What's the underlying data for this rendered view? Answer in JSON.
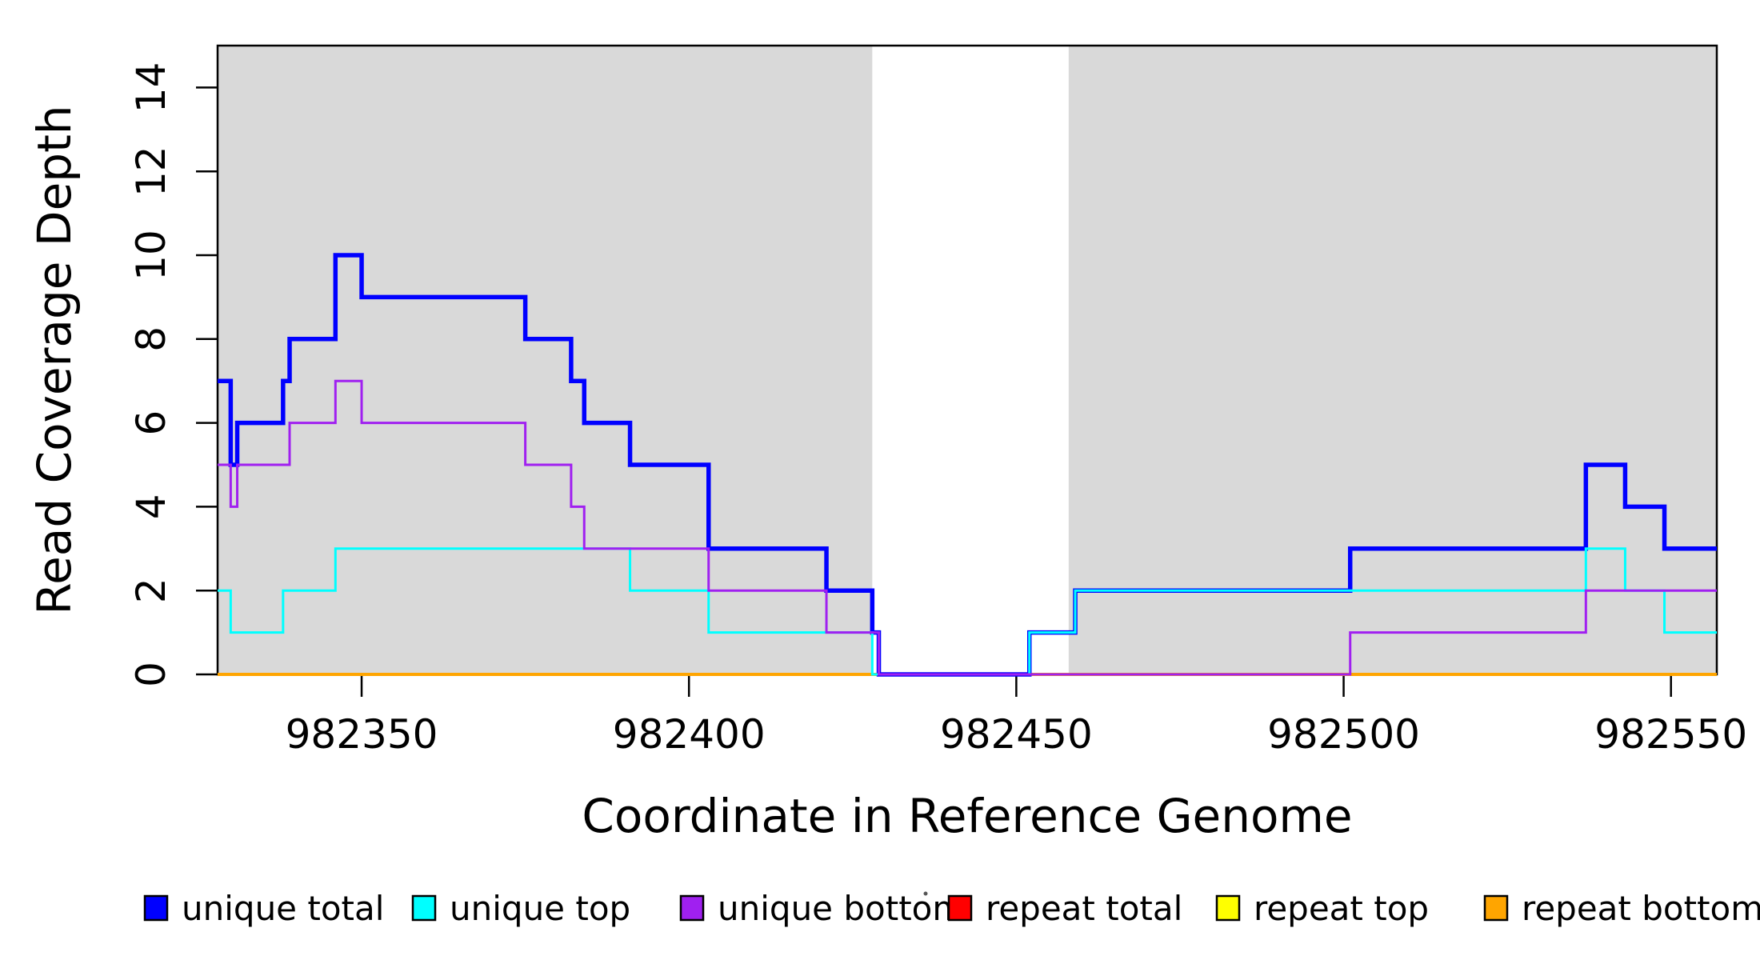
{
  "chart_data": {
    "type": "line",
    "step": true,
    "title": "",
    "xlabel": "Coordinate in Reference Genome",
    "ylabel": "Read Coverage Depth",
    "xlim": [
      982328,
      982557
    ],
    "ylim": [
      0,
      15
    ],
    "x_ticks": [
      "982350",
      "982400",
      "982450",
      "982500",
      "982550"
    ],
    "x_tick_values": [
      982350,
      982400,
      982450,
      982500,
      982550
    ],
    "y_ticks": [
      "0",
      "2",
      "4",
      "6",
      "8",
      "10",
      "12",
      "14"
    ],
    "y_tick_values": [
      0,
      2,
      4,
      6,
      8,
      10,
      12,
      14
    ],
    "grid": "off",
    "plot_background": "#ffffff",
    "shaded_color": "#d9d9d9",
    "shaded_regions": [
      {
        "x0": 982328,
        "x1": 982428
      },
      {
        "x0": 982458,
        "x1": 982557
      }
    ],
    "x_end": 982557,
    "series": [
      {
        "name": "repeat total",
        "color": "#ff0000",
        "line_width": 3,
        "points": [
          [
            982328,
            0
          ]
        ]
      },
      {
        "name": "repeat top",
        "color": "#ffff00",
        "line_width": 3,
        "points": [
          [
            982328,
            0
          ]
        ]
      },
      {
        "name": "repeat bottom",
        "color": "#ffa500",
        "line_width": 4,
        "points": [
          [
            982328,
            0
          ]
        ]
      },
      {
        "name": "unique total",
        "color": "#0000ff",
        "line_width": 5.5,
        "points": [
          [
            982328,
            7
          ],
          [
            982330,
            5
          ],
          [
            982331,
            6
          ],
          [
            982338,
            7
          ],
          [
            982339,
            8
          ],
          [
            982346,
            10
          ],
          [
            982350,
            9
          ],
          [
            982375,
            8
          ],
          [
            982382,
            7
          ],
          [
            982384,
            6
          ],
          [
            982391,
            5
          ],
          [
            982403,
            3
          ],
          [
            982421,
            2
          ],
          [
            982428,
            1
          ],
          [
            982429,
            0
          ],
          [
            982452,
            1
          ],
          [
            982459,
            2
          ],
          [
            982501,
            3
          ],
          [
            982537,
            5
          ],
          [
            982543,
            4
          ],
          [
            982549,
            3
          ]
        ]
      },
      {
        "name": "unique top",
        "color": "#00ffff",
        "line_width": 3,
        "points": [
          [
            982328,
            2
          ],
          [
            982330,
            1
          ],
          [
            982338,
            2
          ],
          [
            982346,
            3
          ],
          [
            982391,
            2
          ],
          [
            982403,
            1
          ],
          [
            982428,
            0
          ],
          [
            982452,
            1
          ],
          [
            982459,
            2
          ],
          [
            982537,
            3
          ],
          [
            982543,
            2
          ],
          [
            982549,
            1
          ]
        ]
      },
      {
        "name": "unique bottom",
        "color": "#a020f0",
        "line_width": 3,
        "points": [
          [
            982328,
            5
          ],
          [
            982330,
            4
          ],
          [
            982331,
            5
          ],
          [
            982339,
            6
          ],
          [
            982346,
            7
          ],
          [
            982350,
            6
          ],
          [
            982375,
            5
          ],
          [
            982382,
            4
          ],
          [
            982384,
            3
          ],
          [
            982403,
            2
          ],
          [
            982421,
            1
          ],
          [
            982429,
            0
          ],
          [
            982501,
            1
          ],
          [
            982537,
            2
          ]
        ]
      }
    ],
    "legend_position": "bottom"
  },
  "legend": {
    "items": [
      {
        "label": "unique total",
        "color": "#0000ff"
      },
      {
        "label": "unique top",
        "color": "#00ffff"
      },
      {
        "label": "unique bottom",
        "color": "#a020f0"
      },
      {
        "label": "repeat total",
        "color": "#ff0000"
      },
      {
        "label": "repeat top",
        "color": "#ffff00"
      },
      {
        "label": "repeat bottom",
        "color": "#ffa500"
      }
    ]
  }
}
